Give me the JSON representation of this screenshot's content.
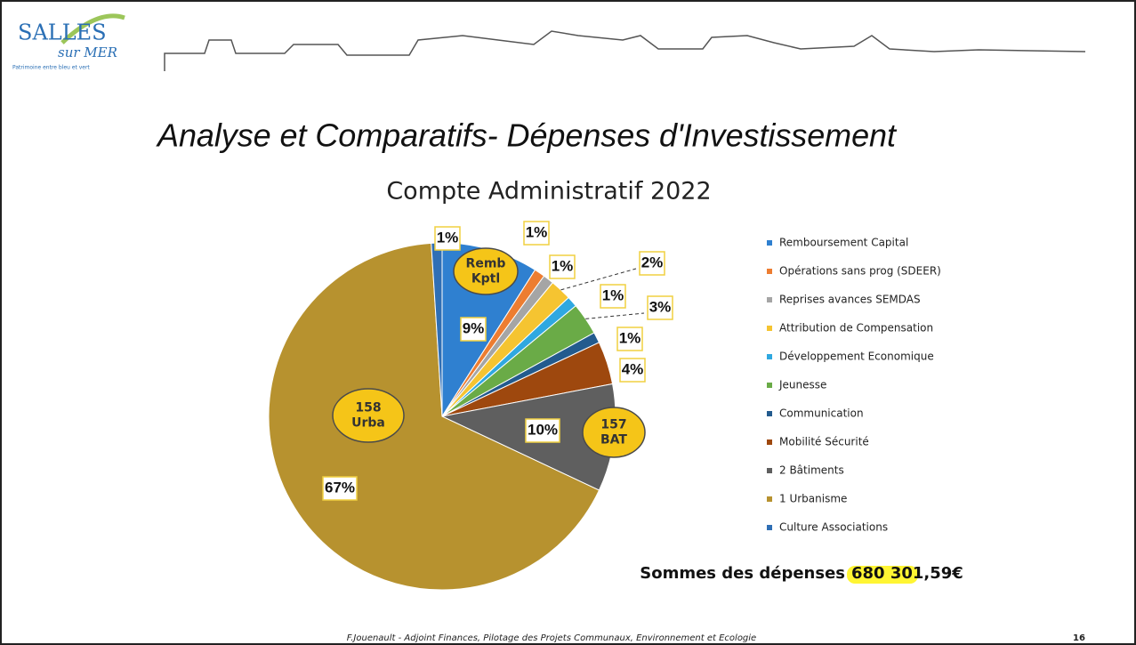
{
  "logo": {
    "name": "SALLES",
    "sub": "sur MER",
    "tagline": "Patrimoine entre bleu et vert"
  },
  "heading": "Analyse et Comparatifs- Dépenses d'Investissement",
  "chart_data": {
    "type": "pie",
    "title": "Compte Administratif 2022",
    "categories": [
      "Remboursement Capital",
      "Opérations sans prog (SDEER)",
      "Reprises avances SEMDAS",
      "Attribution de Compensation",
      "Développement Economique",
      "Jeunesse",
      "Communication",
      "Mobilité Sécurité",
      "2 Bâtiments",
      "1 Urbanisme",
      "Culture Associations"
    ],
    "values": [
      9,
      1,
      1,
      2,
      1,
      3,
      1,
      4,
      10,
      67,
      1
    ],
    "value_labels": [
      "9%",
      "1%",
      "1%",
      "2%",
      "1%",
      "3%",
      "1%",
      "4%",
      "10%",
      "67%",
      "1%"
    ],
    "colors": [
      "#2f80d0",
      "#ed7d31",
      "#a5a5a5",
      "#f5c431",
      "#2fa8e0",
      "#6aab47",
      "#235b8e",
      "#9e480e",
      "#5f5f5f",
      "#b7922f",
      "#2f6fb5"
    ],
    "legend": "right",
    "annotations": [
      [
        "Remb",
        "Kptl"
      ],
      [
        "158",
        "Urba"
      ],
      [
        "157",
        "BAT"
      ]
    ],
    "total_label": "Sommes des dépenses",
    "total_value": "680 301,59€"
  },
  "footer": "F.Jouenault - Adjoint Finances, Pilotage des Projets Communaux, Environnement et Ecologie",
  "page_number": "16"
}
